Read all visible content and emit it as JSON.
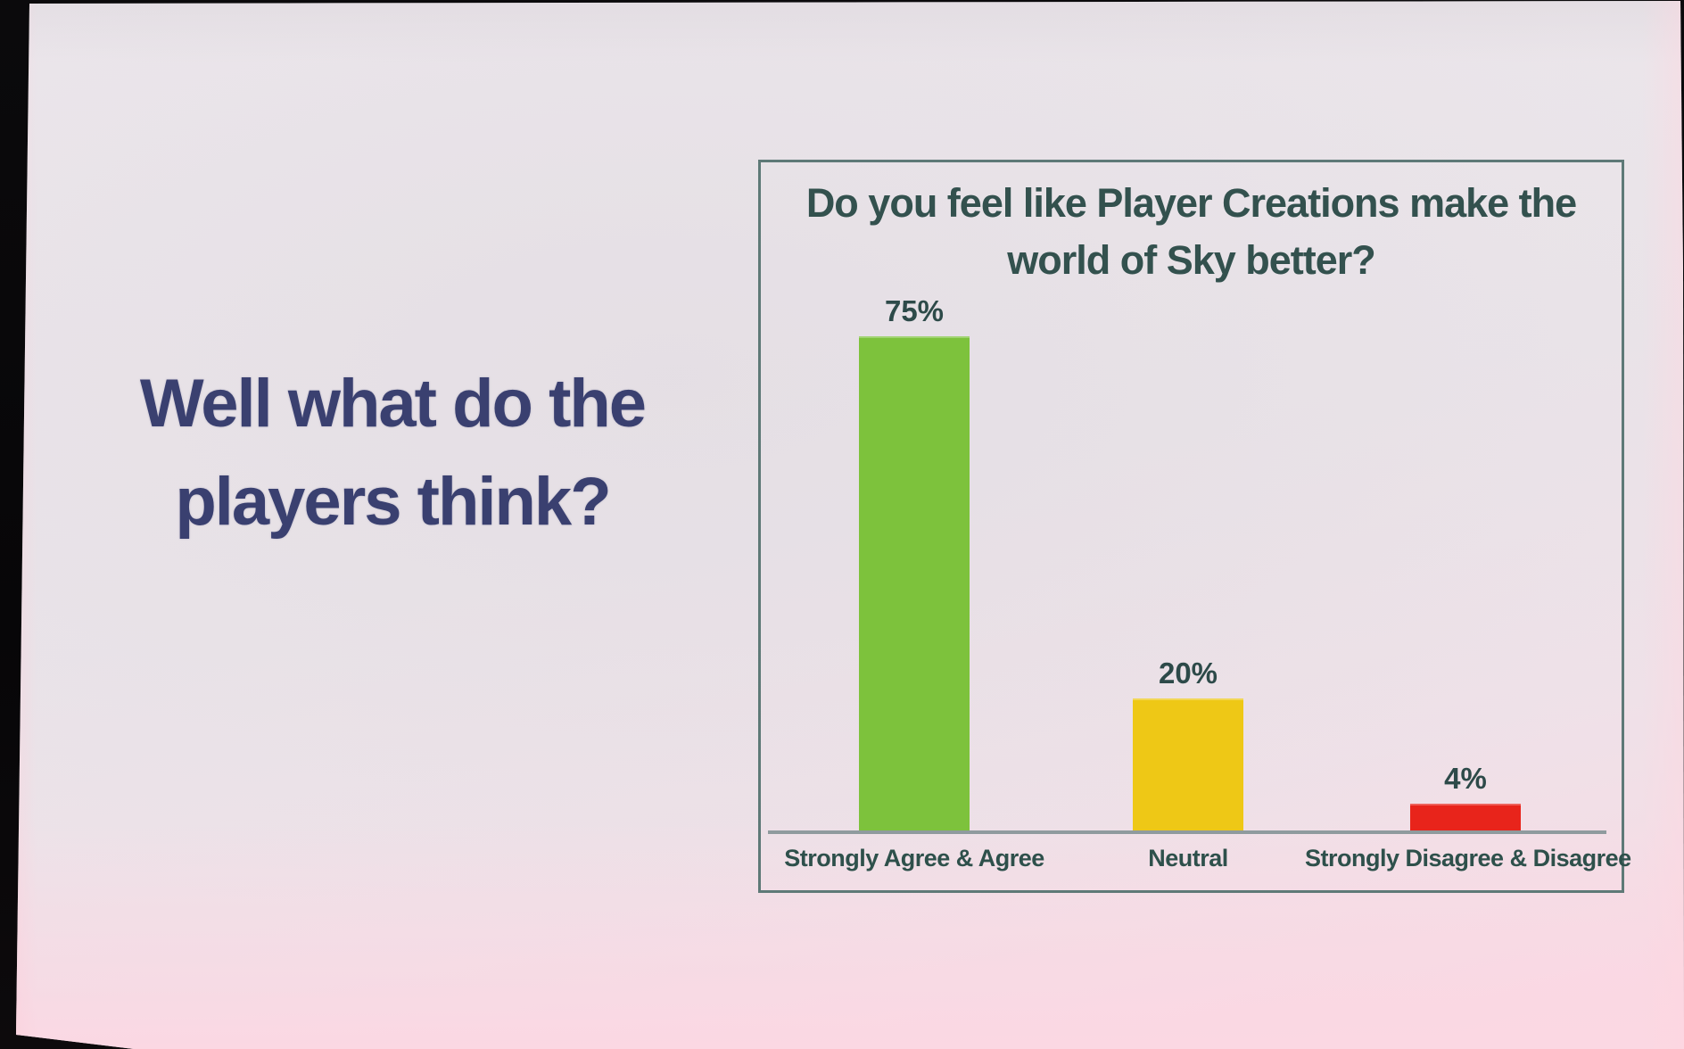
{
  "slide": {
    "headline": {
      "lines": [
        "Well what do the",
        "players think?"
      ],
      "color": "#3a4070"
    }
  },
  "chart_data": {
    "type": "bar",
    "title": "Do you feel like Player Creations make the world of Sky better?",
    "title_lines": [
      "Do you feel like Player Creations make the",
      "world of Sky better?"
    ],
    "categories": [
      "Strongly Agree & Agree",
      "Neutral",
      "Strongly Disagree & Disagree"
    ],
    "values": [
      75,
      20,
      4
    ],
    "data_labels": [
      "75%",
      "20%",
      "4%"
    ],
    "bar_colors": [
      "#7dc23c",
      "#eec816",
      "#e8241b"
    ],
    "unit": "%",
    "ylim": [
      0,
      80
    ],
    "xlabel": "",
    "ylabel": "",
    "grid": false,
    "legend": false,
    "axis_color": "#8f9b9e",
    "frame_color": "#5e7977",
    "title_color": "#33514e",
    "label_color": "#2e504b"
  }
}
